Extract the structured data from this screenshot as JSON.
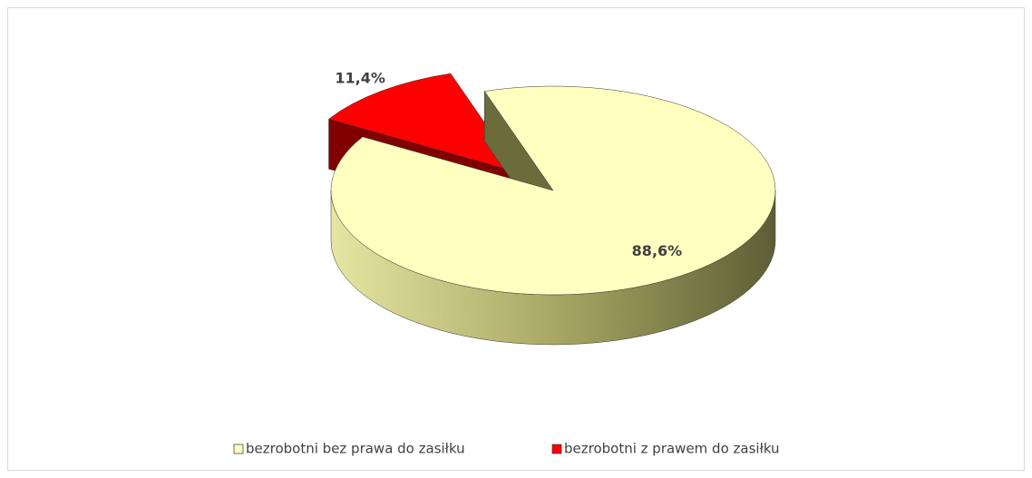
{
  "chart_data": {
    "type": "pie3d",
    "categories": [
      "bezrobotni bez prawa do zasiłku",
      "bezrobotni z prawem do zasiłku"
    ],
    "values": [
      88.6,
      11.4
    ],
    "value_labels": [
      "88,6%",
      "11,4%"
    ],
    "colors": [
      "#ffffc0",
      "#ff0000"
    ],
    "exploded": [
      false,
      true
    ],
    "legend": "bottom"
  }
}
